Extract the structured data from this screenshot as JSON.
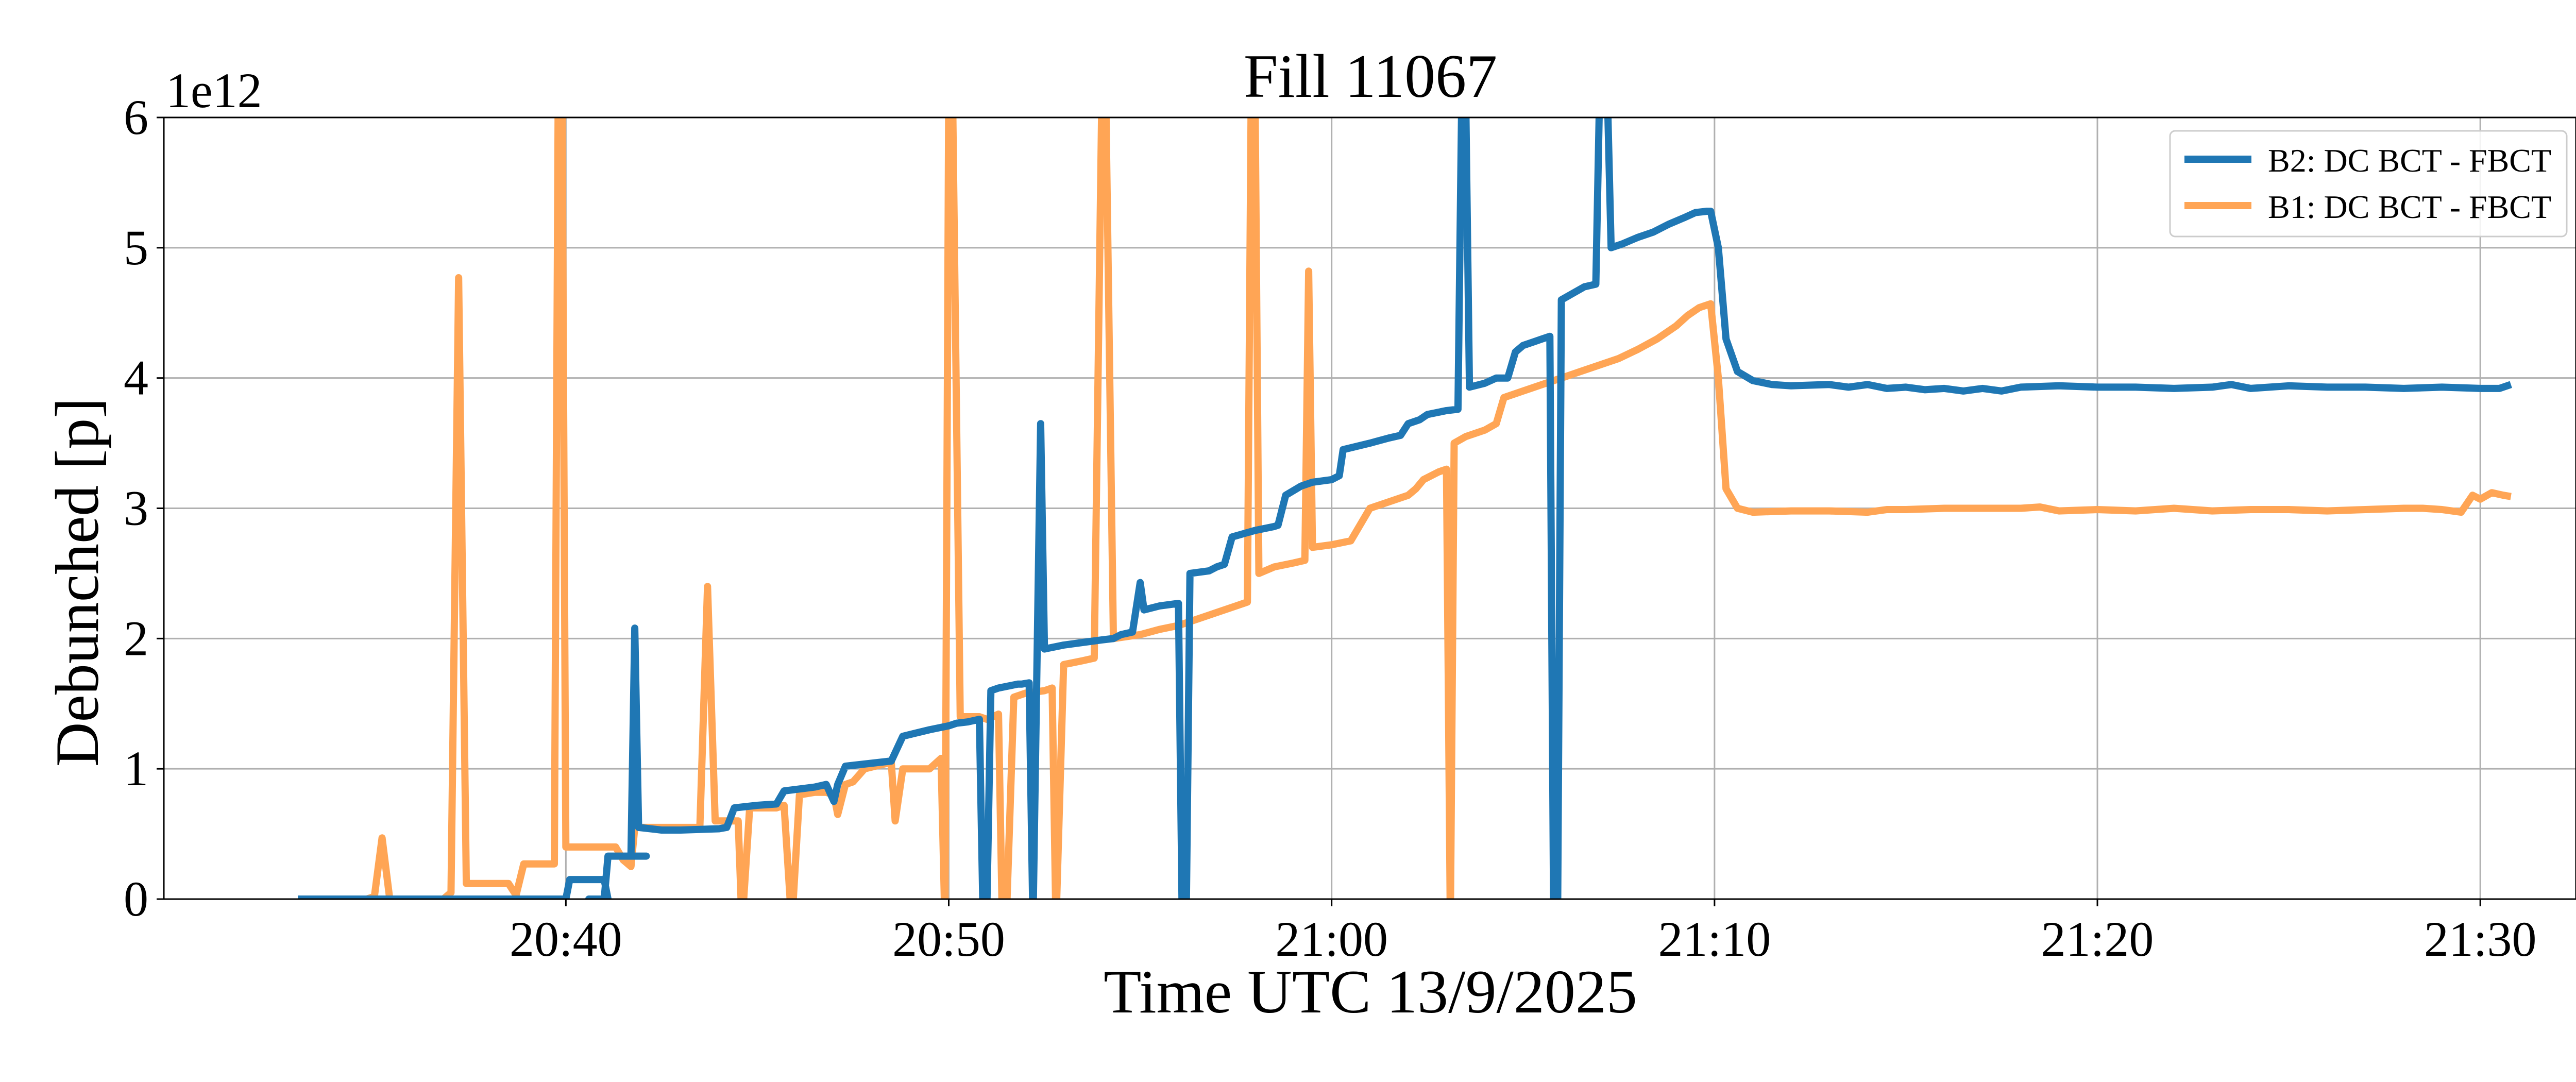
{
  "chart_data": {
    "type": "line",
    "title": "Fill 11067",
    "xlabel": "Time UTC 13/9/2025",
    "ylabel": "Debunched [p]",
    "y_offset_label": "1e12",
    "x_unit": "minutes after 20:00 UTC",
    "xlim": [
      29.5,
      92.5
    ],
    "ylim": [
      0,
      6
    ],
    "x_ticks": [
      40,
      50,
      60,
      70,
      80,
      90
    ],
    "x_tick_labels": [
      "20:40",
      "20:50",
      "21:00",
      "21:10",
      "21:20",
      "21:30"
    ],
    "y_ticks": [
      0,
      1,
      2,
      3,
      4,
      5,
      6
    ],
    "y_tick_labels": [
      "0",
      "1",
      "2",
      "3",
      "4",
      "5",
      "6"
    ],
    "grid": true,
    "legend_position": "top-right",
    "series": [
      {
        "name": "B2: DC BCT - FBCT",
        "color": "#1f77b4",
        "points": [
          [
            33.0,
            0.0
          ],
          [
            40.0,
            0.0
          ],
          [
            40.1,
            0.15
          ],
          [
            41.0,
            0.15
          ],
          [
            41.1,
            0.0
          ],
          [
            40.6,
            0.0
          ],
          [
            40.7,
            0.0
          ],
          [
            40.7,
            -0.05
          ],
          [
            40.7,
            0.0
          ],
          [
            41.0,
            0.0
          ],
          [
            41.1,
            0.33
          ],
          [
            41.2,
            0.33
          ],
          [
            42.0,
            0.33
          ],
          [
            42.1,
            0.33
          ],
          [
            41.5,
            0.33
          ],
          [
            41.7,
            0.33
          ],
          [
            41.8,
            2.08
          ],
          [
            41.9,
            0.55
          ],
          [
            42.5,
            0.53
          ],
          [
            43.0,
            0.53
          ],
          [
            44.0,
            0.54
          ],
          [
            44.2,
            0.55
          ],
          [
            44.4,
            0.7
          ],
          [
            45.0,
            0.72
          ],
          [
            45.5,
            0.73
          ],
          [
            45.7,
            0.83
          ],
          [
            46.5,
            0.86
          ],
          [
            46.8,
            0.88
          ],
          [
            47.0,
            0.75
          ],
          [
            47.1,
            0.88
          ],
          [
            47.3,
            1.02
          ],
          [
            48.5,
            1.06
          ],
          [
            48.8,
            1.25
          ],
          [
            49.5,
            1.3
          ],
          [
            50.0,
            1.33
          ],
          [
            50.2,
            1.35
          ],
          [
            50.5,
            1.36
          ],
          [
            50.8,
            1.38
          ],
          [
            50.9,
            -0.2
          ],
          [
            51.0,
            0.0
          ],
          [
            51.1,
            1.6
          ],
          [
            51.3,
            1.62
          ],
          [
            51.8,
            1.65
          ],
          [
            51.9,
            1.65
          ],
          [
            52.1,
            1.66
          ],
          [
            52.2,
            -0.2
          ],
          [
            52.4,
            3.65
          ],
          [
            52.5,
            1.92
          ],
          [
            53.0,
            1.95
          ],
          [
            53.5,
            1.97
          ],
          [
            54.0,
            1.99
          ],
          [
            54.3,
            2.0
          ],
          [
            54.5,
            2.03
          ],
          [
            54.8,
            2.05
          ],
          [
            55.0,
            2.43
          ],
          [
            55.1,
            2.22
          ],
          [
            55.5,
            2.25
          ],
          [
            56.0,
            2.27
          ],
          [
            56.1,
            -0.2
          ],
          [
            56.2,
            -0.2
          ],
          [
            56.3,
            2.5
          ],
          [
            56.8,
            2.52
          ],
          [
            57.0,
            2.55
          ],
          [
            57.2,
            2.57
          ],
          [
            57.4,
            2.78
          ],
          [
            58.0,
            2.83
          ],
          [
            58.5,
            2.86
          ],
          [
            58.6,
            2.87
          ],
          [
            58.8,
            3.1
          ],
          [
            59.2,
            3.17
          ],
          [
            59.5,
            3.2
          ],
          [
            60.0,
            3.22
          ],
          [
            60.2,
            3.25
          ],
          [
            60.3,
            3.45
          ],
          [
            61.0,
            3.5
          ],
          [
            61.5,
            3.54
          ],
          [
            61.8,
            3.56
          ],
          [
            62.0,
            3.65
          ],
          [
            62.3,
            3.68
          ],
          [
            62.5,
            3.72
          ],
          [
            63.0,
            3.75
          ],
          [
            63.3,
            3.76
          ],
          [
            63.4,
            6.2
          ],
          [
            63.5,
            6.2
          ],
          [
            63.6,
            3.93
          ],
          [
            64.0,
            3.96
          ],
          [
            64.3,
            4.0
          ],
          [
            64.6,
            4.0
          ],
          [
            64.8,
            4.2
          ],
          [
            65.0,
            4.25
          ],
          [
            65.3,
            4.28
          ],
          [
            65.5,
            4.3
          ],
          [
            65.7,
            4.32
          ],
          [
            65.8,
            -0.2
          ],
          [
            65.9,
            -0.2
          ],
          [
            66.0,
            4.6
          ],
          [
            66.3,
            4.65
          ],
          [
            66.6,
            4.7
          ],
          [
            66.9,
            4.72
          ],
          [
            67.0,
            6.2
          ],
          [
            67.1,
            6.2
          ],
          [
            67.2,
            6.2
          ],
          [
            67.3,
            5.0
          ],
          [
            67.6,
            5.03
          ],
          [
            68.0,
            5.08
          ],
          [
            68.4,
            5.12
          ],
          [
            68.8,
            5.18
          ],
          [
            69.2,
            5.23
          ],
          [
            69.5,
            5.27
          ],
          [
            69.8,
            5.28
          ],
          [
            69.9,
            5.28
          ],
          [
            70.1,
            5.0
          ],
          [
            70.3,
            4.3
          ],
          [
            70.6,
            4.05
          ],
          [
            71.0,
            3.98
          ],
          [
            71.5,
            3.95
          ],
          [
            72.0,
            3.94
          ],
          [
            73.0,
            3.95
          ],
          [
            73.5,
            3.93
          ],
          [
            74.0,
            3.95
          ],
          [
            74.5,
            3.92
          ],
          [
            75.0,
            3.93
          ],
          [
            75.5,
            3.91
          ],
          [
            76.0,
            3.92
          ],
          [
            76.5,
            3.9
          ],
          [
            77.0,
            3.92
          ],
          [
            77.5,
            3.9
          ],
          [
            78.0,
            3.93
          ],
          [
            79.0,
            3.94
          ],
          [
            80.0,
            3.93
          ],
          [
            81.0,
            3.93
          ],
          [
            82.0,
            3.92
          ],
          [
            83.0,
            3.93
          ],
          [
            83.5,
            3.95
          ],
          [
            84.0,
            3.92
          ],
          [
            85.0,
            3.94
          ],
          [
            86.0,
            3.93
          ],
          [
            87.0,
            3.93
          ],
          [
            88.0,
            3.92
          ],
          [
            89.0,
            3.93
          ],
          [
            90.0,
            3.92
          ],
          [
            90.5,
            3.92
          ],
          [
            90.8,
            3.95
          ]
        ]
      },
      {
        "name": "B1: DC BCT - FBCT",
        "color": "#ffa555",
        "points": [
          [
            33.0,
            0.0
          ],
          [
            34.8,
            0.0
          ],
          [
            35.0,
            0.02
          ],
          [
            35.2,
            0.47
          ],
          [
            35.4,
            0.0
          ],
          [
            36.8,
            0.0
          ],
          [
            37.0,
            0.05
          ],
          [
            37.2,
            4.77
          ],
          [
            37.4,
            0.12
          ],
          [
            38.0,
            0.12
          ],
          [
            38.5,
            0.12
          ],
          [
            38.7,
            0.03
          ],
          [
            38.9,
            0.27
          ],
          [
            39.5,
            0.27
          ],
          [
            39.7,
            0.27
          ],
          [
            39.8,
            6.2
          ],
          [
            39.9,
            6.2
          ],
          [
            40.0,
            0.4
          ],
          [
            41.0,
            0.4
          ],
          [
            41.3,
            0.4
          ],
          [
            41.5,
            0.3
          ],
          [
            41.7,
            0.25
          ],
          [
            41.8,
            0.55
          ],
          [
            42.5,
            0.55
          ],
          [
            43.2,
            0.55
          ],
          [
            43.5,
            0.55
          ],
          [
            43.7,
            2.4
          ],
          [
            43.9,
            0.6
          ],
          [
            44.5,
            0.6
          ],
          [
            44.6,
            -0.2
          ],
          [
            44.8,
            0.7
          ],
          [
            45.5,
            0.7
          ],
          [
            45.7,
            0.72
          ],
          [
            45.9,
            -0.2
          ],
          [
            46.1,
            0.8
          ],
          [
            46.5,
            0.82
          ],
          [
            46.8,
            0.82
          ],
          [
            47.0,
            0.8
          ],
          [
            47.1,
            0.65
          ],
          [
            47.3,
            0.88
          ],
          [
            47.5,
            0.9
          ],
          [
            47.8,
            1.0
          ],
          [
            48.5,
            1.05
          ],
          [
            48.6,
            0.6
          ],
          [
            48.8,
            1.0
          ],
          [
            49.5,
            1.0
          ],
          [
            49.8,
            1.08
          ],
          [
            49.9,
            -0.2
          ],
          [
            50.0,
            6.2
          ],
          [
            50.1,
            6.2
          ],
          [
            50.3,
            1.4
          ],
          [
            50.8,
            1.4
          ],
          [
            51.0,
            1.38
          ],
          [
            51.3,
            1.42
          ],
          [
            51.4,
            -0.2
          ],
          [
            51.5,
            -0.2
          ],
          [
            51.7,
            1.55
          ],
          [
            52.0,
            1.58
          ],
          [
            52.5,
            1.6
          ],
          [
            52.7,
            1.62
          ],
          [
            52.8,
            -0.2
          ],
          [
            53.0,
            1.8
          ],
          [
            53.5,
            1.83
          ],
          [
            53.8,
            1.85
          ],
          [
            54.0,
            6.2
          ],
          [
            54.1,
            6.2
          ],
          [
            54.3,
            2.0
          ],
          [
            55.0,
            2.03
          ],
          [
            55.5,
            2.07
          ],
          [
            56.0,
            2.1
          ],
          [
            56.5,
            2.15
          ],
          [
            57.0,
            2.2
          ],
          [
            57.5,
            2.25
          ],
          [
            57.8,
            2.28
          ],
          [
            57.9,
            6.2
          ],
          [
            58.0,
            6.2
          ],
          [
            58.1,
            2.5
          ],
          [
            58.5,
            2.55
          ],
          [
            59.0,
            2.58
          ],
          [
            59.3,
            2.6
          ],
          [
            59.4,
            4.82
          ],
          [
            59.5,
            2.7
          ],
          [
            60.0,
            2.72
          ],
          [
            60.5,
            2.75
          ],
          [
            61.0,
            3.0
          ],
          [
            61.5,
            3.05
          ],
          [
            62.0,
            3.1
          ],
          [
            62.2,
            3.15
          ],
          [
            62.4,
            3.22
          ],
          [
            62.8,
            3.28
          ],
          [
            63.0,
            3.3
          ],
          [
            63.1,
            -0.2
          ],
          [
            63.2,
            3.5
          ],
          [
            63.5,
            3.55
          ],
          [
            64.0,
            3.6
          ],
          [
            64.3,
            3.65
          ],
          [
            64.5,
            3.85
          ],
          [
            65.0,
            3.9
          ],
          [
            65.5,
            3.95
          ],
          [
            66.0,
            4.0
          ],
          [
            66.5,
            4.05
          ],
          [
            67.0,
            4.1
          ],
          [
            67.5,
            4.15
          ],
          [
            68.0,
            4.22
          ],
          [
            68.5,
            4.3
          ],
          [
            69.0,
            4.4
          ],
          [
            69.3,
            4.48
          ],
          [
            69.6,
            4.54
          ],
          [
            69.9,
            4.57
          ],
          [
            70.1,
            4.0
          ],
          [
            70.3,
            3.15
          ],
          [
            70.6,
            3.0
          ],
          [
            71.0,
            2.97
          ],
          [
            72.0,
            2.98
          ],
          [
            73.0,
            2.98
          ],
          [
            74.0,
            2.97
          ],
          [
            74.5,
            2.99
          ],
          [
            75.0,
            2.99
          ],
          [
            76.0,
            3.0
          ],
          [
            77.0,
            3.0
          ],
          [
            78.0,
            3.0
          ],
          [
            78.5,
            3.01
          ],
          [
            79.0,
            2.98
          ],
          [
            80.0,
            2.99
          ],
          [
            81.0,
            2.98
          ],
          [
            82.0,
            3.0
          ],
          [
            83.0,
            2.98
          ],
          [
            84.0,
            2.99
          ],
          [
            85.0,
            2.99
          ],
          [
            86.0,
            2.98
          ],
          [
            87.0,
            2.99
          ],
          [
            88.0,
            3.0
          ],
          [
            88.5,
            3.0
          ],
          [
            89.0,
            2.99
          ],
          [
            89.5,
            2.97
          ],
          [
            89.8,
            3.1
          ],
          [
            90.0,
            3.07
          ],
          [
            90.3,
            3.12
          ],
          [
            90.6,
            3.1
          ],
          [
            90.8,
            3.09
          ]
        ]
      }
    ]
  }
}
